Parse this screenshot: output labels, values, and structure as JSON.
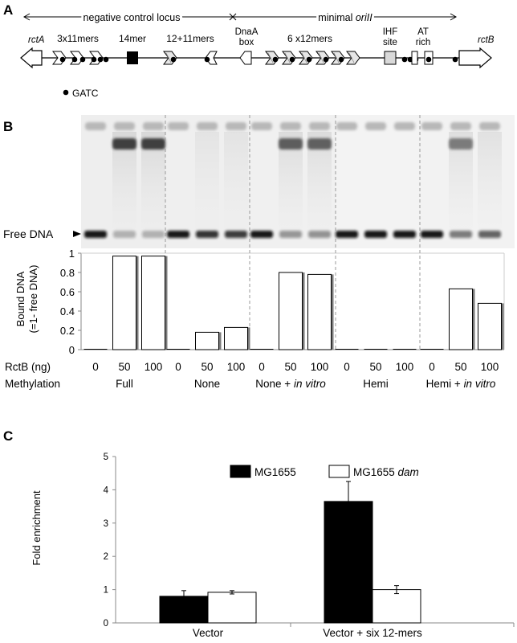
{
  "panel_a": {
    "letter": "A",
    "negative_control_label": "negative control locus",
    "minimal_label_prefix": "minimal ",
    "minimal_label_italic": "oriII",
    "rctA": "rctA",
    "rctB": "rctB",
    "features": {
      "f1": "3x11mers",
      "f2": "14mer",
      "f3": "12+11mers",
      "f4_line1": "DnaA",
      "f4_line2": "box",
      "f5": "6 x12mers",
      "f6_line1": "IHF",
      "f6_line2": "site",
      "f7_line1": "AT",
      "f7_line2": "rich"
    },
    "legend_gatc": "GATC"
  },
  "panel_b": {
    "letter": "B",
    "free_dna_label": "Free DNA",
    "y_title_line1": "Bound DNA",
    "y_title_line2": "(=1- free DNA)",
    "y_ticks": [
      "0",
      "0.2",
      "0.4",
      "0.6",
      "0.8",
      "1"
    ],
    "rctb_label": "RctB (ng)",
    "methylation_label": "Methylation",
    "groups": [
      {
        "label": "Full",
        "italic": ""
      },
      {
        "label": "None",
        "italic": ""
      },
      {
        "label": "None + ",
        "italic": "in vitro"
      },
      {
        "label": "Hemi",
        "italic": ""
      },
      {
        "label": "Hemi + ",
        "italic": "in vitro"
      }
    ],
    "lane_doses": [
      "0",
      "50",
      "100"
    ]
  },
  "panel_c": {
    "letter": "C",
    "y_title": "Fold enrichment",
    "legend": {
      "s1": "MG1655",
      "s2_prefix": "MG1655 ",
      "s2_italic": "dam"
    }
  },
  "chart_data": [
    {
      "type": "bar",
      "panel": "B",
      "ylabel": "Bound DNA (=1- free DNA)",
      "ylim": [
        0,
        1
      ],
      "y_ticks": [
        0,
        0.2,
        0.4,
        0.6,
        0.8,
        1
      ],
      "x_row1_label": "RctB (ng)",
      "x_row2_label": "Methylation",
      "groups": [
        "Full",
        "None",
        "None + in vitro",
        "Hemi",
        "Hemi + in vitro"
      ],
      "categories": [
        "0",
        "50",
        "100"
      ],
      "values": [
        [
          0,
          0.97,
          0.97
        ],
        [
          0,
          0.18,
          0.23
        ],
        [
          0,
          0.8,
          0.78
        ],
        [
          0,
          0,
          0
        ],
        [
          0,
          0.63,
          0.48
        ]
      ]
    },
    {
      "type": "bar",
      "panel": "C",
      "title": "",
      "xlabel": "",
      "ylabel": "Fold enrichment",
      "ylim": [
        0,
        5
      ],
      "y_ticks": [
        "0",
        "1",
        "2",
        "3",
        "4",
        "5"
      ],
      "categories": [
        "Vector",
        "Vector + six 12-mers"
      ],
      "legend_position": "top-center",
      "series": [
        {
          "name": "MG1655",
          "color": "#000000",
          "values": [
            0.8,
            3.65
          ],
          "errors": [
            0.17,
            0.6
          ]
        },
        {
          "name": "MG1655 dam",
          "color": "#ffffff",
          "values": [
            0.92,
            1.0
          ],
          "errors": [
            0.05,
            0.12
          ]
        }
      ]
    }
  ]
}
